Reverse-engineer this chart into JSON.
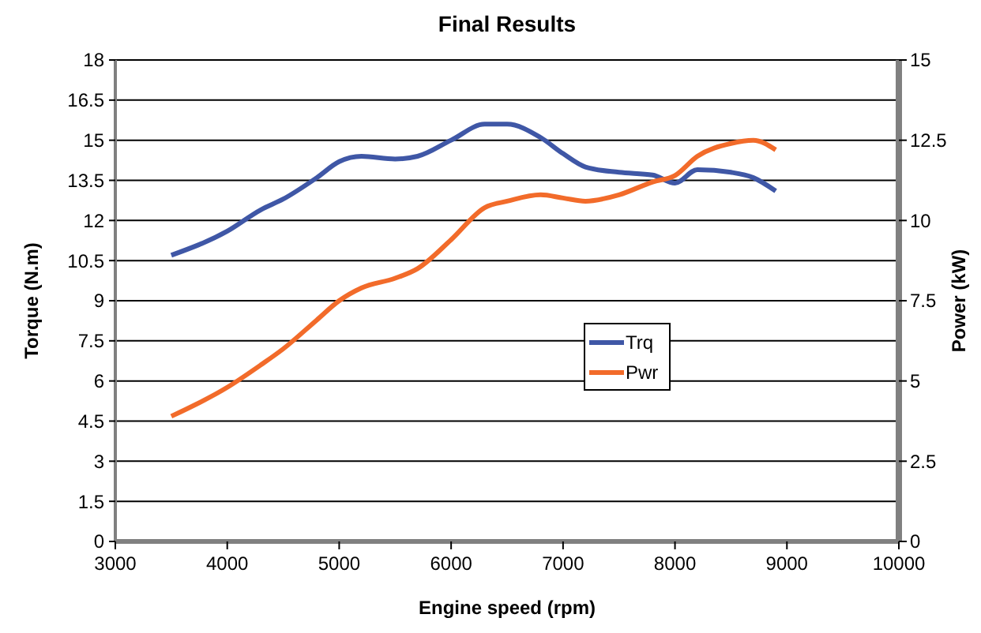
{
  "chart_data": {
    "type": "line",
    "title": "Final Results",
    "xlabel": "Engine speed (rpm)",
    "ylabel": "Torque (N.m)",
    "y2label": "Power (kW)",
    "x": [
      3500,
      4000,
      4300,
      4500,
      4800,
      5000,
      5200,
      5500,
      5700,
      6000,
      6300,
      6500,
      6800,
      7000,
      7200,
      7500,
      7800,
      8000,
      8200,
      8500,
      8700,
      8900
    ],
    "series": [
      {
        "name": "Trq",
        "color": "#3f57a6",
        "values": [
          10.7,
          11.6,
          12.4,
          12.8,
          13.6,
          14.2,
          14.4,
          14.3,
          14.4,
          15.0,
          15.6,
          15.6,
          15.1,
          14.5,
          14.0,
          13.8,
          13.7,
          13.4,
          13.9,
          13.8,
          13.6,
          13.1
        ]
      },
      {
        "name": "Pwr",
        "color": "#f26b2a",
        "axis": "y2",
        "values": [
          3.9,
          4.8,
          5.5,
          6.0,
          6.9,
          7.5,
          7.9,
          8.2,
          8.5,
          9.4,
          10.4,
          10.6,
          10.8,
          10.7,
          10.6,
          10.8,
          11.2,
          11.4,
          12.0,
          12.4,
          12.5,
          12.2
        ]
      }
    ],
    "xlim": [
      3000,
      10000
    ],
    "xticks": [
      3000,
      4000,
      5000,
      6000,
      7000,
      8000,
      9000,
      10000
    ],
    "ylim": [
      0,
      18
    ],
    "yticks": [
      0,
      1.5,
      3,
      4.5,
      6,
      7.5,
      9,
      10.5,
      12,
      13.5,
      15,
      16.5,
      18
    ],
    "y2lim": [
      0,
      15
    ],
    "y2ticks": [
      0,
      2.5,
      5,
      7.5,
      10,
      12.5,
      15
    ],
    "grid": "y",
    "legend": "right",
    "marker": "none",
    "line_style": "solid"
  }
}
